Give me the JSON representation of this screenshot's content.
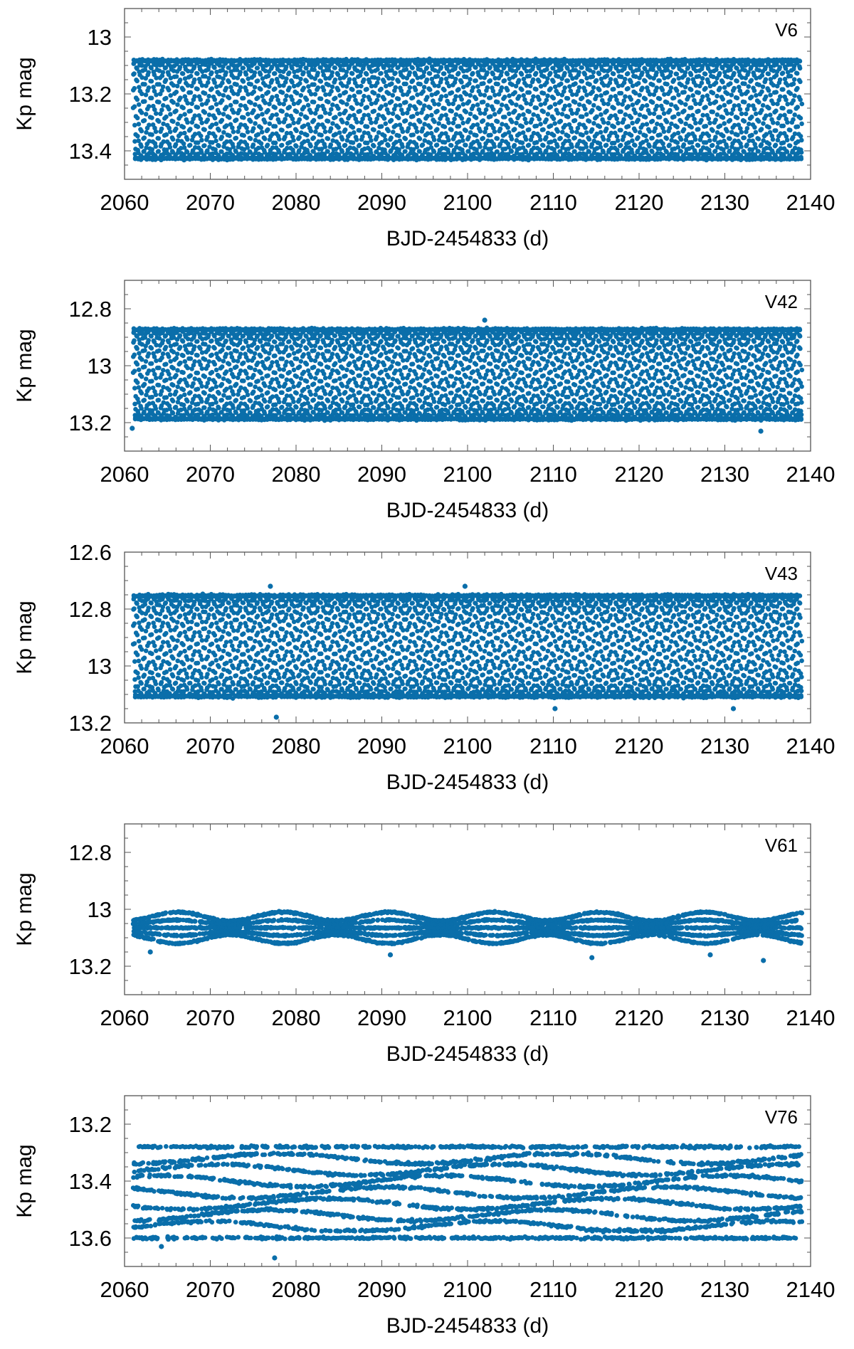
{
  "chart_data": [
    {
      "type": "scatter",
      "label": "V6",
      "xlabel": "BJD-2454833 (d)",
      "ylabel": "Kp mag",
      "xlim": [
        2060,
        2140
      ],
      "ylim": [
        13.5,
        12.9
      ],
      "y_inverted": true,
      "xticks": [
        "2060",
        "2070",
        "2080",
        "2090",
        "2100",
        "2110",
        "2120",
        "2130",
        "2140"
      ],
      "yticks": [
        {
          "value": 13.0,
          "label": "13"
        },
        {
          "value": 13.2,
          "label": "13.2"
        },
        {
          "value": 13.4,
          "label": "13.4"
        }
      ],
      "series": [
        {
          "name": "V6",
          "color": "#0a6eaa",
          "x_range": [
            2061,
            2139
          ],
          "bright_mag": 13.08,
          "faint_mag": 13.43,
          "pattern": "pulsating",
          "bands": 0,
          "outliers": []
        }
      ]
    },
    {
      "type": "scatter",
      "label": "V42",
      "xlabel": "BJD-2454833 (d)",
      "ylabel": "Kp mag",
      "xlim": [
        2060,
        2140
      ],
      "ylim": [
        13.3,
        12.7
      ],
      "y_inverted": true,
      "xticks": [
        "2060",
        "2070",
        "2080",
        "2090",
        "2100",
        "2110",
        "2120",
        "2130",
        "2140"
      ],
      "yticks": [
        {
          "value": 12.8,
          "label": "12.8"
        },
        {
          "value": 13.0,
          "label": "13"
        },
        {
          "value": 13.2,
          "label": "13.2"
        }
      ],
      "series": [
        {
          "name": "V42",
          "color": "#0a6eaa",
          "x_range": [
            2061,
            2139
          ],
          "bright_mag": 12.87,
          "faint_mag": 13.19,
          "pattern": "pulsating",
          "bands": 0,
          "outliers": [
            [
              2102.0,
              12.84
            ],
            [
              2060.9,
              13.22
            ],
            [
              2134.2,
              13.23
            ]
          ]
        }
      ]
    },
    {
      "type": "scatter",
      "label": "V43",
      "xlabel": "BJD-2454833 (d)",
      "ylabel": "Kp mag",
      "xlim": [
        2060,
        2140
      ],
      "ylim": [
        13.2,
        12.6
      ],
      "y_inverted": true,
      "xticks": [
        "2060",
        "2070",
        "2080",
        "2090",
        "2100",
        "2110",
        "2120",
        "2130",
        "2140"
      ],
      "yticks": [
        {
          "value": 12.6,
          "label": "12.6"
        },
        {
          "value": 12.8,
          "label": "12.8"
        },
        {
          "value": 13.0,
          "label": "13"
        },
        {
          "value": 13.2,
          "label": "13.2"
        }
      ],
      "series": [
        {
          "name": "V43",
          "color": "#0a6eaa",
          "x_range": [
            2061,
            2139
          ],
          "bright_mag": 12.75,
          "faint_mag": 13.11,
          "pattern": "pulsating",
          "bands": 0,
          "outliers": [
            [
              2077.0,
              12.72
            ],
            [
              2099.7,
              12.72
            ],
            [
              2077.7,
              13.18
            ],
            [
              2110.2,
              13.15
            ],
            [
              2131.0,
              13.15
            ]
          ]
        }
      ]
    },
    {
      "type": "scatter",
      "label": "V61",
      "xlabel": "BJD-2454833 (d)",
      "ylabel": "Kp mag",
      "xlim": [
        2060,
        2140
      ],
      "ylim": [
        13.3,
        12.7
      ],
      "y_inverted": true,
      "xticks": [
        "2060",
        "2070",
        "2080",
        "2090",
        "2100",
        "2110",
        "2120",
        "2130",
        "2140"
      ],
      "yticks": [
        {
          "value": 12.8,
          "label": "12.8"
        },
        {
          "value": 13.0,
          "label": "13"
        },
        {
          "value": 13.2,
          "label": "13.2"
        }
      ],
      "series": [
        {
          "name": "V61",
          "color": "#0a6eaa",
          "x_range": [
            2061,
            2139
          ],
          "bright_mag": 13.01,
          "faint_mag": 13.12,
          "pattern": "beating",
          "bands": 5,
          "outliers": [
            [
              2063.0,
              13.15
            ],
            [
              2091.0,
              13.16
            ],
            [
              2114.5,
              13.17
            ],
            [
              2128.3,
              13.16
            ],
            [
              2134.5,
              13.18
            ]
          ]
        }
      ]
    },
    {
      "type": "scatter",
      "label": "V76",
      "xlabel": "BJD-2454833 (d)",
      "ylabel": "Kp mag",
      "xlim": [
        2060,
        2140
      ],
      "ylim": [
        13.7,
        13.1
      ],
      "y_inverted": true,
      "xticks": [
        "2060",
        "2070",
        "2080",
        "2090",
        "2100",
        "2110",
        "2120",
        "2130",
        "2140"
      ],
      "yticks": [
        {
          "value": 13.2,
          "label": "13.2"
        },
        {
          "value": 13.4,
          "label": "13.4"
        },
        {
          "value": 13.6,
          "label": "13.6"
        }
      ],
      "series": [
        {
          "name": "V76",
          "color": "#0a6eaa",
          "x_range": [
            2061,
            2139
          ],
          "bright_mag": 13.28,
          "faint_mag": 13.6,
          "pattern": "banded",
          "bands": 9,
          "outliers": [
            [
              2064.3,
              13.63
            ],
            [
              2077.5,
              13.67
            ]
          ]
        }
      ]
    }
  ]
}
